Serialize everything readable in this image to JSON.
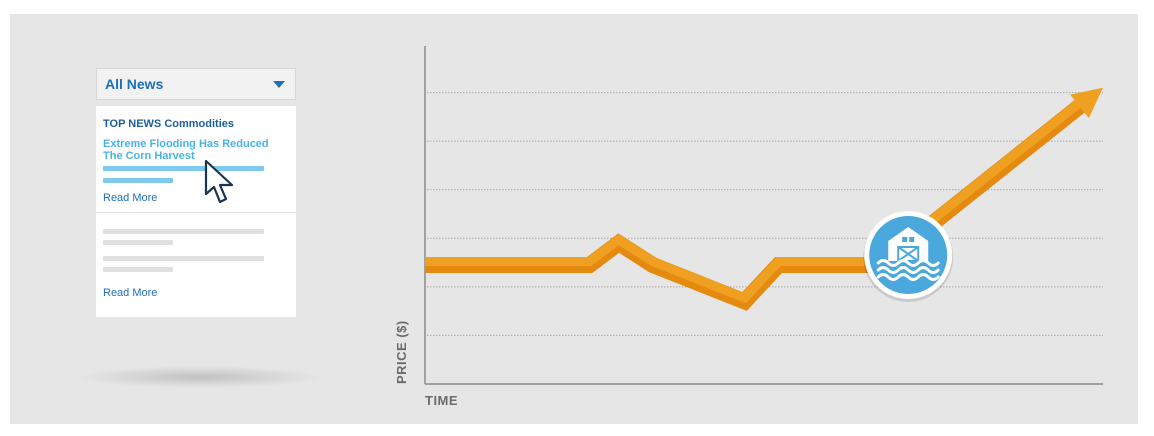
{
  "news": {
    "dropdown": {
      "label": "All News",
      "icon": "chevron-down-icon"
    },
    "items": [
      {
        "section": "TOP NEWS Commodities",
        "headline": "Extreme Flooding Has Reduced The Corn Harvest",
        "read_more": "Read More"
      },
      {
        "read_more": "Read More"
      }
    ]
  },
  "chart_data": {
    "type": "line",
    "xlabel": "TIME",
    "ylabel": "PRICE ($)",
    "grid": true,
    "x": [
      0,
      1.7,
      2,
      2.35,
      3.3,
      3.65,
      4.35,
      4.7,
      7.0
    ],
    "y": [
      2.45,
      2.45,
      2.9,
      2.45,
      1.7,
      2.45,
      2.45,
      2.45,
      6.1
    ],
    "xlim": [
      0,
      7
    ],
    "ylim": [
      0,
      7
    ],
    "marker": {
      "x": 4.7,
      "y": 2.45,
      "icon": "flooded-barn-icon"
    },
    "end_arrow": true,
    "colors": {
      "line": "#f0a020",
      "line_shadow": "#e48a10",
      "marker": "#4aa8dc"
    }
  }
}
